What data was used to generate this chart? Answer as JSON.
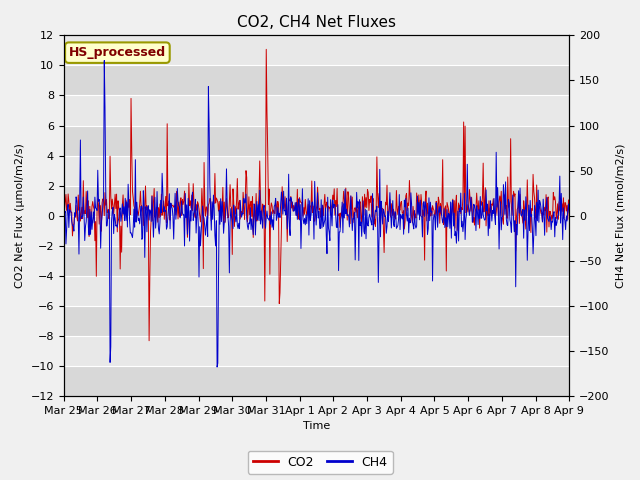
{
  "title": "CO2, CH4 Net Fluxes",
  "xlabel": "Time",
  "ylabel_left": "CO2 Net Flux (μmol/m2/s)",
  "ylabel_right": "CH4 Net Flux (nmol/m2/s)",
  "ylim_left": [
    -12,
    12
  ],
  "ylim_right": [
    -200,
    200
  ],
  "co2_color": "#cc0000",
  "ch4_color": "#0000cc",
  "background_color": "#f0f0f0",
  "plot_bg_color": "#e8e8e8",
  "band_color_light": "#e0e0e0",
  "band_color_dark": "#d0d0d0",
  "annotation_text": "HS_processed",
  "annotation_color": "#800000",
  "annotation_bg": "#ffffcc",
  "annotation_border": "#999900",
  "x_tick_labels": [
    "Mar 25",
    "Mar 26",
    "Mar 27",
    "Mar 28",
    "Mar 29",
    "Mar 30",
    "Mar 31",
    "Apr 1",
    "Apr 2",
    "Apr 3",
    "Apr 4",
    "Apr 5",
    "Apr 6",
    "Apr 7",
    "Apr 8",
    "Apr 9"
  ],
  "yticks": [
    -12,
    -10,
    -8,
    -6,
    -4,
    -2,
    0,
    2,
    4,
    6,
    8,
    10,
    12
  ],
  "yticks_right": [
    -200,
    -150,
    -100,
    -50,
    0,
    50,
    100,
    150,
    200
  ],
  "n_points": 700,
  "seed": 42,
  "title_fontsize": 11,
  "axis_label_fontsize": 8,
  "tick_fontsize": 8
}
